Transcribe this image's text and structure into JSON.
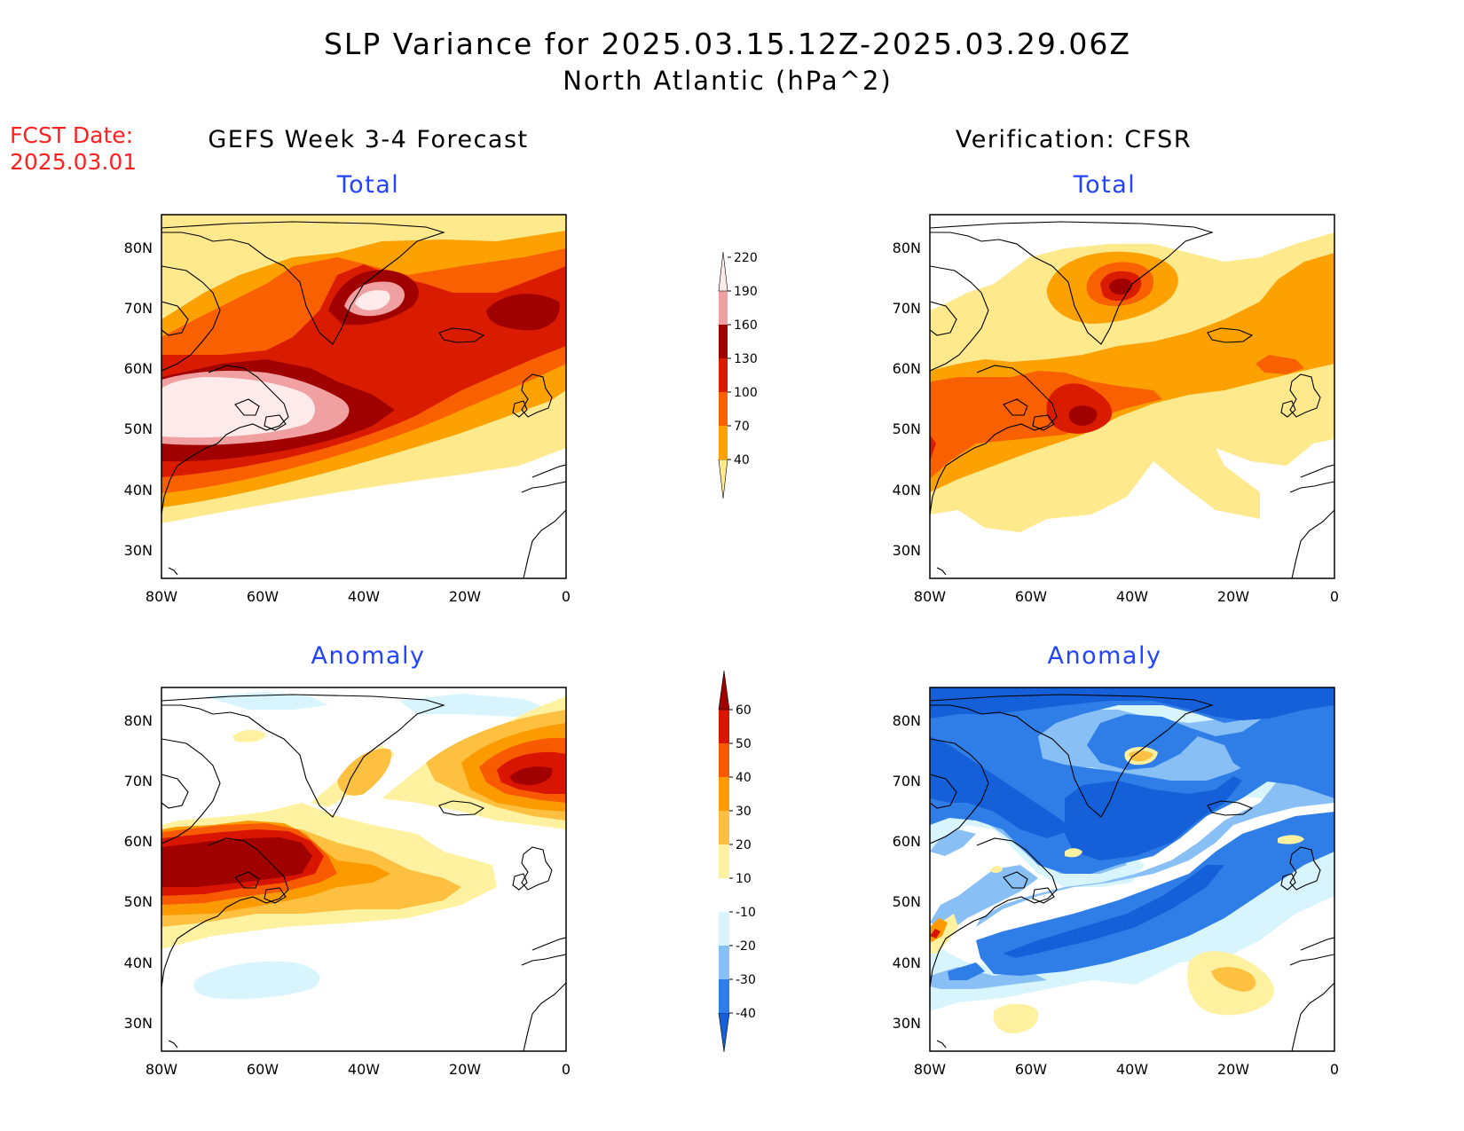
{
  "title": {
    "line1": "SLP Variance for 2025.03.15.12Z-2025.03.29.06Z",
    "line2": "North Atlantic (hPa^2)"
  },
  "fcst_date": {
    "label": "FCST Date:",
    "value": "2025.03.01"
  },
  "columns": {
    "left": "GEFS Week 3-4 Forecast",
    "right": "Verification: CFSR"
  },
  "panel_titles": {
    "total": "Total",
    "anomaly": "Anomaly"
  },
  "axes": {
    "lon_ticks": [
      "80W",
      "60W",
      "40W",
      "20W",
      "0"
    ],
    "lat_ticks": [
      "80N",
      "70N",
      "60N",
      "50N",
      "40N",
      "30N"
    ],
    "lon_range": [
      -80,
      0
    ],
    "lat_range": [
      25,
      85
    ]
  },
  "colorbars": {
    "total": {
      "levels": [
        "40",
        "70",
        "100",
        "130",
        "160",
        "190",
        "220"
      ],
      "colors": [
        "#fee98d",
        "#fca100",
        "#f96000",
        "#d91c00",
        "#a10000",
        "#f0a0a0",
        "#fdeaea"
      ]
    },
    "anomaly": {
      "levels": [
        "-40",
        "-30",
        "-20",
        "-10",
        "10",
        "20",
        "30",
        "40",
        "50",
        "60"
      ],
      "colors": [
        "#1560d8",
        "#2f7ee8",
        "#88c0f5",
        "#d8f4fc",
        "#ffffff",
        "#fef2a0",
        "#fdc040",
        "#fb9b00",
        "#f85a00",
        "#d81500",
        "#a00000"
      ]
    }
  },
  "colors": {
    "fcst_date": "#ff2020",
    "subtitle": "#2244ff",
    "coastline": "#000000"
  }
}
